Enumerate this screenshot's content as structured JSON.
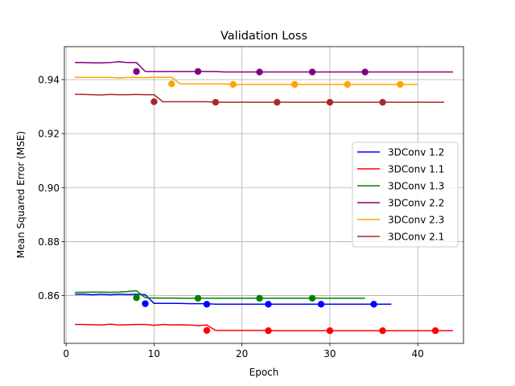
{
  "chart_data": {
    "type": "line",
    "title": "Validation Loss",
    "xlabel": "Epoch",
    "ylabel": "Mean Squared Error (MSE)",
    "xlim": [
      -0.2,
      45.2
    ],
    "ylim": [
      0.8423,
      0.9522
    ],
    "xticks": [
      0,
      10,
      20,
      30,
      40
    ],
    "yticks": [
      0.86,
      0.88,
      0.9,
      0.92,
      0.94
    ],
    "ytick_labels": [
      "0.86",
      "0.88",
      "0.90",
      "0.92",
      "0.94"
    ],
    "grid": true,
    "legend_position": "center right",
    "series": [
      {
        "name": "3DConv 1.2",
        "color": "#0000ff",
        "x": [
          1,
          2,
          3,
          4,
          5,
          6,
          7,
          8,
          9,
          10,
          11,
          12,
          13,
          14,
          15,
          16,
          17,
          18,
          19,
          20,
          21,
          22,
          23,
          24,
          25,
          26,
          27,
          28,
          29,
          30,
          31,
          32,
          33,
          34,
          35,
          36,
          37
        ],
        "y": [
          0.8605,
          0.8605,
          0.8603,
          0.8605,
          0.8603,
          0.8605,
          0.8604,
          0.8605,
          0.8603,
          0.8571,
          0.8571,
          0.8571,
          0.8571,
          0.857,
          0.857,
          0.857,
          0.8568,
          0.8568,
          0.8568,
          0.8568,
          0.8568,
          0.8568,
          0.8568,
          0.8568,
          0.8568,
          0.8568,
          0.8568,
          0.8568,
          0.8568,
          0.8568,
          0.8568,
          0.8568,
          0.8568,
          0.8568,
          0.8568,
          0.8568,
          0.8568
        ],
        "markers": {
          "x": [
            9,
            16,
            23,
            29,
            35
          ],
          "y": [
            0.857,
            0.8568,
            0.8568,
            0.8568,
            0.8568
          ]
        }
      },
      {
        "name": "3DConv 1.1",
        "color": "#ff0000",
        "x": [
          1,
          2,
          3,
          4,
          5,
          6,
          7,
          8,
          9,
          10,
          11,
          12,
          13,
          14,
          15,
          16,
          17,
          18,
          19,
          20,
          21,
          22,
          23,
          24,
          25,
          26,
          27,
          28,
          29,
          30,
          31,
          32,
          33,
          34,
          35,
          36,
          37,
          38,
          39,
          40,
          41,
          42,
          43,
          44
        ],
        "y": [
          0.8493,
          0.8493,
          0.8492,
          0.8491,
          0.8494,
          0.8491,
          0.8492,
          0.8493,
          0.8493,
          0.849,
          0.8493,
          0.8491,
          0.8492,
          0.8491,
          0.8489,
          0.8491,
          0.8471,
          0.8471,
          0.8471,
          0.8471,
          0.8471,
          0.8471,
          0.8471,
          0.847,
          0.847,
          0.847,
          0.847,
          0.847,
          0.847,
          0.847,
          0.847,
          0.847,
          0.847,
          0.847,
          0.847,
          0.847,
          0.847,
          0.847,
          0.847,
          0.847,
          0.847,
          0.847,
          0.847,
          0.847
        ],
        "markers": {
          "x": [
            16,
            23,
            30,
            36,
            42
          ],
          "y": [
            0.8471,
            0.847,
            0.847,
            0.847,
            0.847
          ]
        }
      },
      {
        "name": "3DConv 1.3",
        "color": "#008000",
        "x": [
          1,
          2,
          3,
          4,
          5,
          6,
          7,
          8,
          9,
          10,
          11,
          12,
          13,
          14,
          15,
          16,
          17,
          18,
          19,
          20,
          21,
          22,
          23,
          24,
          25,
          26,
          27,
          28,
          29,
          30,
          31,
          32,
          33,
          34
        ],
        "y": [
          0.8612,
          0.8612,
          0.8613,
          0.8613,
          0.8612,
          0.8613,
          0.8615,
          0.8618,
          0.8592,
          0.8591,
          0.8591,
          0.8591,
          0.859,
          0.859,
          0.859,
          0.859,
          0.859,
          0.859,
          0.859,
          0.859,
          0.859,
          0.859,
          0.859,
          0.859,
          0.859,
          0.859,
          0.859,
          0.859,
          0.859,
          0.859,
          0.859,
          0.859,
          0.859,
          0.859
        ],
        "markers": {
          "x": [
            8,
            15,
            22,
            28
          ],
          "y": [
            0.8592,
            0.859,
            0.859,
            0.859
          ]
        }
      },
      {
        "name": "3DConv 2.2",
        "color": "#800080",
        "x": [
          1,
          2,
          3,
          4,
          5,
          6,
          7,
          8,
          9,
          10,
          11,
          12,
          13,
          14,
          15,
          16,
          17,
          18,
          19,
          20,
          21,
          22,
          23,
          24,
          25,
          26,
          27,
          28,
          29,
          30,
          31,
          32,
          33,
          34,
          35,
          36,
          37,
          38,
          39,
          40,
          41,
          42,
          43,
          44
        ],
        "y": [
          0.9463,
          0.9463,
          0.9462,
          0.9462,
          0.9463,
          0.9466,
          0.9463,
          0.9463,
          0.943,
          0.943,
          0.943,
          0.943,
          0.943,
          0.943,
          0.943,
          0.943,
          0.943,
          0.9428,
          0.9428,
          0.9428,
          0.9428,
          0.9428,
          0.9428,
          0.9428,
          0.9428,
          0.9428,
          0.9428,
          0.9428,
          0.9428,
          0.9428,
          0.9428,
          0.9428,
          0.9428,
          0.9428,
          0.9428,
          0.9428,
          0.9428,
          0.9428,
          0.9428,
          0.9428,
          0.9428,
          0.9428,
          0.9428,
          0.9428
        ],
        "markers": {
          "x": [
            8,
            15,
            22,
            28,
            34
          ],
          "y": [
            0.943,
            0.943,
            0.9428,
            0.9428,
            0.9428
          ]
        }
      },
      {
        "name": "3DConv 2.3",
        "color": "#ffa500",
        "x": [
          1,
          2,
          3,
          4,
          5,
          6,
          7,
          8,
          9,
          10,
          11,
          12,
          13,
          14,
          15,
          16,
          17,
          18,
          19,
          20,
          21,
          22,
          23,
          24,
          25,
          26,
          27,
          28,
          29,
          30,
          31,
          32,
          33,
          34,
          35,
          36,
          37,
          38,
          39,
          40
        ],
        "y": [
          0.9408,
          0.9408,
          0.9408,
          0.9408,
          0.9408,
          0.9406,
          0.9408,
          0.9408,
          0.9407,
          0.9408,
          0.9408,
          0.9408,
          0.9384,
          0.9384,
          0.9384,
          0.9384,
          0.9384,
          0.9384,
          0.9382,
          0.9382,
          0.9382,
          0.9382,
          0.9382,
          0.9382,
          0.9382,
          0.9382,
          0.9382,
          0.9382,
          0.9382,
          0.9382,
          0.9382,
          0.9382,
          0.9382,
          0.9382,
          0.9382,
          0.9382,
          0.9382,
          0.9382,
          0.9382,
          0.9382
        ],
        "markers": {
          "x": [
            12,
            19,
            26,
            32,
            38
          ],
          "y": [
            0.9384,
            0.9382,
            0.9382,
            0.9382,
            0.9382
          ]
        }
      },
      {
        "name": "3DConv 2.1",
        "color": "#a52a2a",
        "x": [
          1,
          2,
          3,
          4,
          5,
          6,
          7,
          8,
          9,
          10,
          11,
          12,
          13,
          14,
          15,
          16,
          17,
          18,
          19,
          20,
          21,
          22,
          23,
          24,
          25,
          26,
          27,
          28,
          29,
          30,
          31,
          32,
          33,
          34,
          35,
          36,
          37,
          38,
          39,
          40,
          41,
          42,
          43
        ],
        "y": [
          0.9345,
          0.9345,
          0.9344,
          0.9343,
          0.9345,
          0.9344,
          0.9344,
          0.9345,
          0.9344,
          0.9344,
          0.9318,
          0.9318,
          0.9318,
          0.9318,
          0.9318,
          0.9318,
          0.9316,
          0.9316,
          0.9316,
          0.9316,
          0.9316,
          0.9316,
          0.9316,
          0.9316,
          0.9316,
          0.9316,
          0.9316,
          0.9316,
          0.9316,
          0.9316,
          0.9316,
          0.9316,
          0.9316,
          0.9316,
          0.9316,
          0.9316,
          0.9316,
          0.9316,
          0.9316,
          0.9316,
          0.9316,
          0.9316,
          0.9316
        ],
        "markers": {
          "x": [
            10,
            17,
            24,
            30,
            36
          ],
          "y": [
            0.9318,
            0.9316,
            0.9316,
            0.9316,
            0.9316
          ]
        }
      }
    ]
  }
}
